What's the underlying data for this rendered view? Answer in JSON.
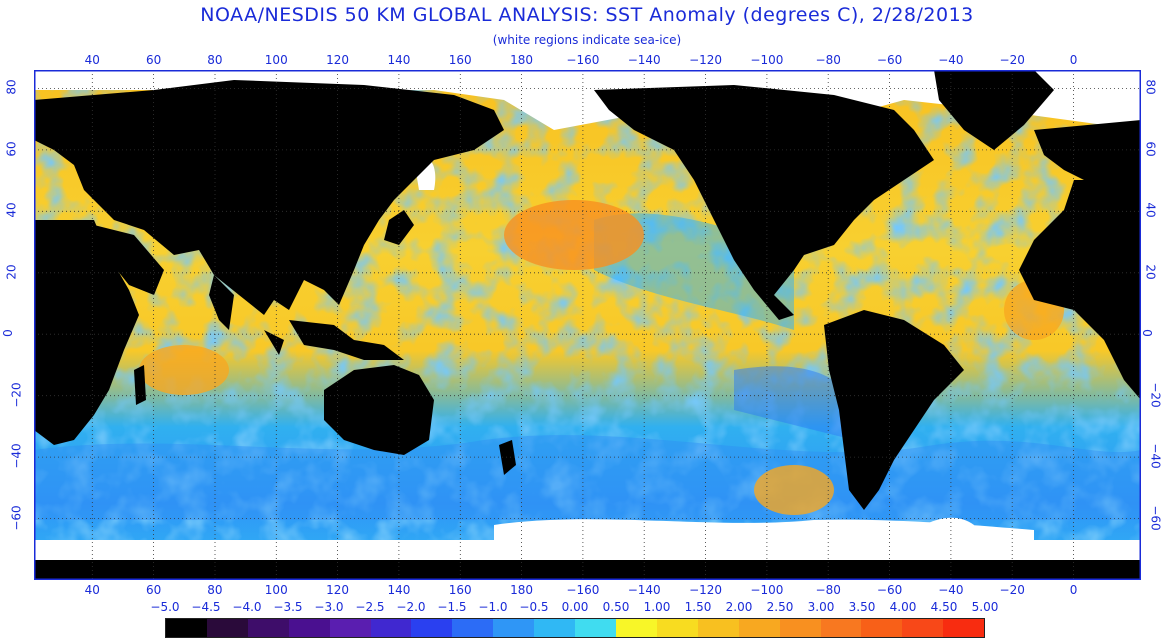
{
  "header": {
    "title": "NOAA/NESDIS 50 KM GLOBAL ANALYSIS: SST Anomaly (degrees C), 2/28/2013",
    "subtitle": "(white regions indicate sea-ice)"
  },
  "map": {
    "lon_labels": [
      "40",
      "60",
      "80",
      "100",
      "120",
      "140",
      "160",
      "180",
      "−160",
      "−140",
      "−120",
      "−100",
      "−80",
      "−60",
      "−40",
      "−20",
      "0"
    ],
    "lat_labels": [
      "80",
      "60",
      "40",
      "20",
      "0",
      "−20",
      "−40",
      "−60"
    ],
    "lon_range": [
      21,
      382
    ],
    "lat_range": [
      -80,
      86
    ],
    "colors": {
      "land": "#000000",
      "ice": "#ffffff",
      "frame": "#1a2bd8",
      "text": "#1a2bd8"
    }
  },
  "legend": {
    "labels": [
      "−5.0",
      "−4.5",
      "−4.0",
      "−3.5",
      "−3.0",
      "−2.5",
      "−2.0",
      "−1.5",
      "−1.0",
      "−0.5",
      "0.00",
      "0.50",
      "1.00",
      "1.50",
      "2.00",
      "2.50",
      "3.00",
      "3.50",
      "4.00",
      "4.50",
      "5.00"
    ],
    "colors": [
      "#000000",
      "#2a0a3a",
      "#3e0d6a",
      "#4a1090",
      "#5a1eb0",
      "#4028d0",
      "#2a40f0",
      "#2c6cf6",
      "#2f96f6",
      "#30b8f4",
      "#40dcf0",
      "#f8f628",
      "#f8dc20",
      "#f8c020",
      "#f8a820",
      "#f89020",
      "#f87820",
      "#f86018",
      "#f84818",
      "#f82c10"
    ]
  }
}
